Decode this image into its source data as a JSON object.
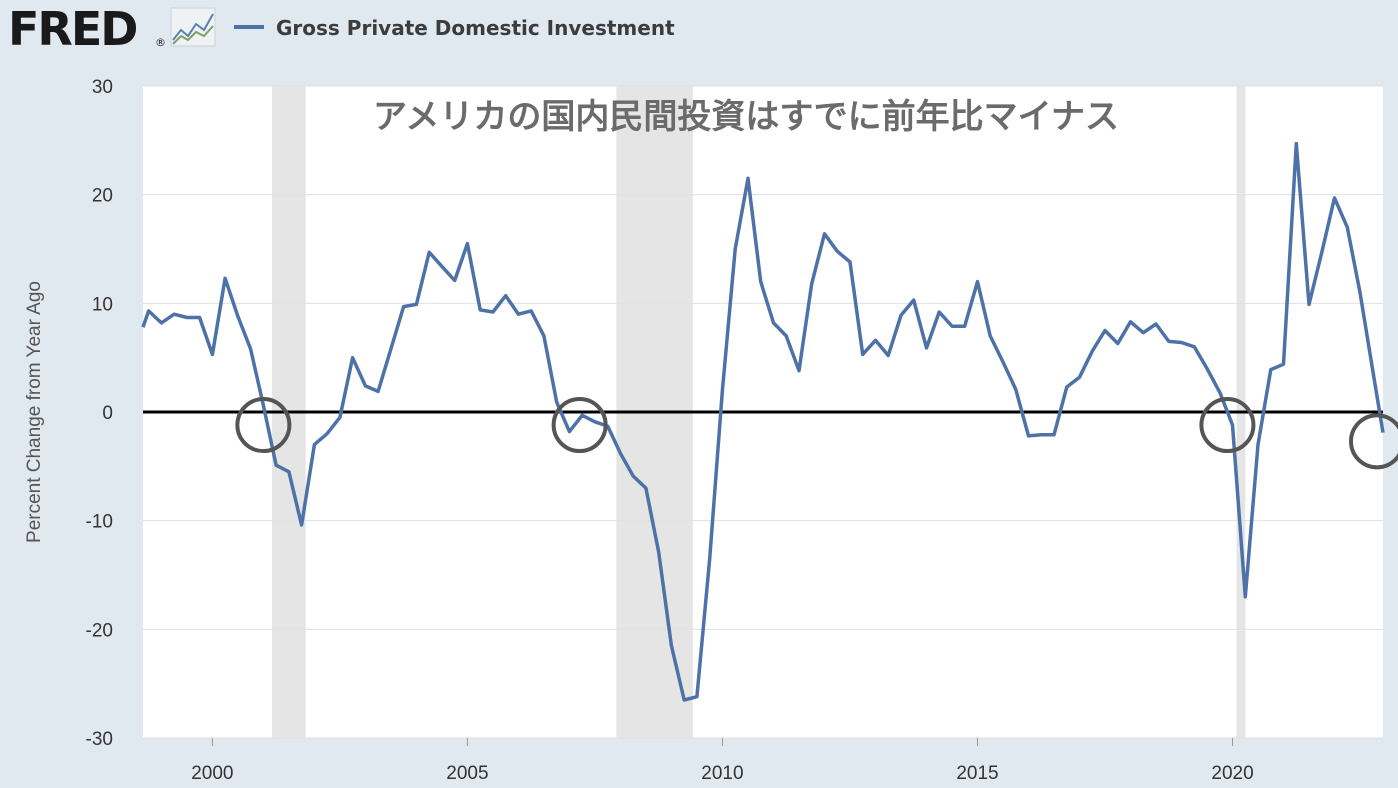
{
  "header": {
    "logo_text": "FRED",
    "logo_reg": "®",
    "logo_icon": "trend-lines-icon",
    "legend_label": "Gross Private Domestic Investment"
  },
  "colors": {
    "background": "#e1e9f0",
    "plot_background": "#ffffff",
    "series": "#4d72a8",
    "recession": "#e5e5e5",
    "zero_line": "#000000",
    "circle": "#555555",
    "grid": "#e0e0e0"
  },
  "chart_data": {
    "type": "line",
    "title": "",
    "annotation": "アメリカの国内民間投資はすでに前年比マイナス",
    "xlabel": "",
    "ylabel": "Percent Change from Year Ago",
    "xlim": [
      1998.64,
      2022.95
    ],
    "ylim": [
      -30,
      30
    ],
    "x_ticks": [
      2000,
      2005,
      2010,
      2015,
      2020
    ],
    "x_tick_labels": [
      "2000",
      "2005",
      "2010",
      "2015",
      "2020"
    ],
    "y_ticks": [
      30,
      20,
      10,
      0,
      -10,
      -20,
      -30
    ],
    "y_tick_labels": [
      "30",
      "20",
      "10",
      "0",
      "-10",
      "-20",
      "-30"
    ],
    "grid": true,
    "zero_line": true,
    "recessions": [
      [
        2001.17,
        2001.83
      ],
      [
        2007.92,
        2009.42
      ],
      [
        2020.08,
        2020.25
      ]
    ],
    "highlight_circles": [
      {
        "x": 2001.0,
        "y": -1.2
      },
      {
        "x": 2007.2,
        "y": -1.2
      },
      {
        "x": 2019.9,
        "y": -1.2
      },
      {
        "x": 2022.9,
        "y": -2.7
      }
    ],
    "series": [
      {
        "name": "Gross Private Domestic Investment",
        "x": [
          1998.64,
          1998.75,
          1999.0,
          1999.25,
          1999.5,
          1999.75,
          2000.0,
          2000.25,
          2000.5,
          2000.75,
          2001.0,
          2001.25,
          2001.5,
          2001.75,
          2002.0,
          2002.25,
          2002.5,
          2002.75,
          2003.0,
          2003.25,
          2003.5,
          2003.75,
          2004.0,
          2004.25,
          2004.5,
          2004.75,
          2005.0,
          2005.25,
          2005.5,
          2005.75,
          2006.0,
          2006.25,
          2006.5,
          2006.75,
          2007.0,
          2007.25,
          2007.5,
          2007.75,
          2008.0,
          2008.25,
          2008.5,
          2008.75,
          2009.0,
          2009.25,
          2009.5,
          2009.75,
          2010.0,
          2010.25,
          2010.5,
          2010.75,
          2011.0,
          2011.25,
          2011.5,
          2011.75,
          2012.0,
          2012.25,
          2012.5,
          2012.75,
          2013.0,
          2013.25,
          2013.5,
          2013.75,
          2014.0,
          2014.25,
          2014.5,
          2014.75,
          2015.0,
          2015.25,
          2015.5,
          2015.75,
          2016.0,
          2016.25,
          2016.5,
          2016.75,
          2017.0,
          2017.25,
          2017.5,
          2017.75,
          2018.0,
          2018.25,
          2018.5,
          2018.75,
          2019.0,
          2019.25,
          2019.5,
          2019.75,
          2020.0,
          2020.25,
          2020.5,
          2020.75,
          2021.0,
          2021.25,
          2021.5,
          2021.75,
          2022.0,
          2022.25,
          2022.5,
          2022.75,
          2022.95
        ],
        "values": [
          7.8,
          9.3,
          8.2,
          9.0,
          8.7,
          8.7,
          5.3,
          12.3,
          8.8,
          5.8,
          0.6,
          -4.9,
          -5.5,
          -10.4,
          -3.0,
          -2.0,
          -0.5,
          5.0,
          2.4,
          1.9,
          5.8,
          9.7,
          9.9,
          14.7,
          13.4,
          12.1,
          15.5,
          9.4,
          9.2,
          10.7,
          9.0,
          9.3,
          7.0,
          0.9,
          -1.8,
          -0.3,
          -0.9,
          -1.3,
          -3.8,
          -5.9,
          -7.0,
          -12.9,
          -21.5,
          -26.5,
          -26.2,
          -13.5,
          2.0,
          15.0,
          21.5,
          12.0,
          8.2,
          7.0,
          3.8,
          11.8,
          16.4,
          14.8,
          13.8,
          5.3,
          6.6,
          5.2,
          8.9,
          10.3,
          5.9,
          9.2,
          7.9,
          7.9,
          12.0,
          7.0,
          4.6,
          2.1,
          -2.2,
          -2.1,
          -2.1,
          2.3,
          3.2,
          5.6,
          7.5,
          6.3,
          8.3,
          7.3,
          8.1,
          6.5,
          6.4,
          6.0,
          4.0,
          1.8,
          -1.2,
          -17.0,
          -3.0,
          3.9,
          4.4,
          24.7,
          9.9,
          14.7,
          19.7,
          17.0,
          11.0,
          3.8,
          -1.9
        ]
      }
    ]
  }
}
